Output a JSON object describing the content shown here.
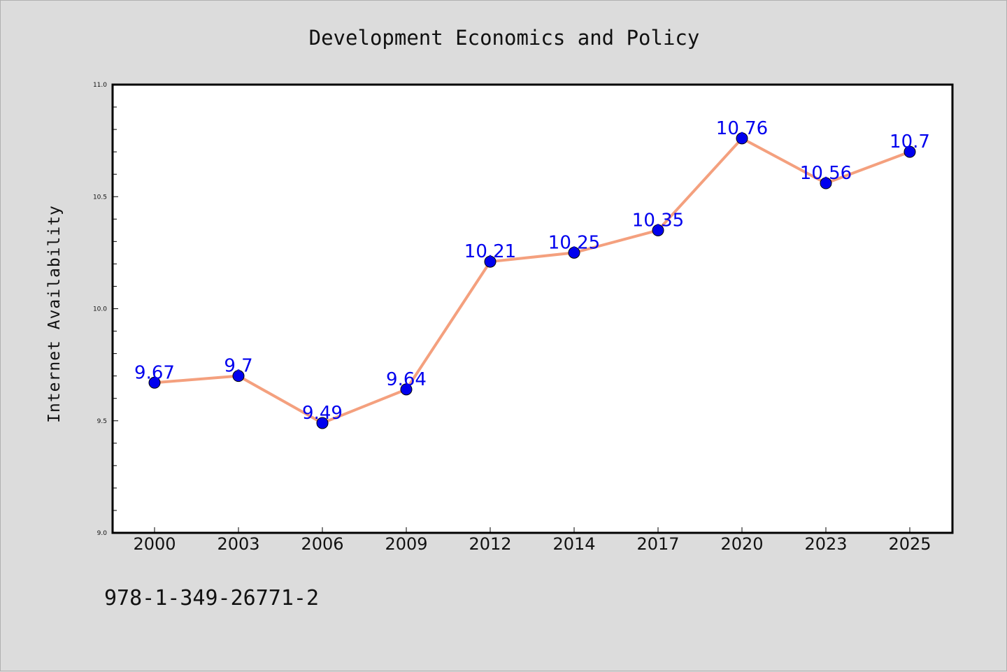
{
  "chart_data": {
    "type": "line",
    "title": "Development Economics and Policy",
    "xlabel": "",
    "ylabel": "Internet Availability",
    "categories": [
      "2000",
      "2003",
      "2006",
      "2009",
      "2012",
      "2014",
      "2017",
      "2020",
      "2023",
      "2025"
    ],
    "values": [
      9.67,
      9.7,
      9.49,
      9.64,
      10.21,
      10.25,
      10.35,
      10.76,
      10.56,
      10.7
    ],
    "data_labels": [
      "9.67",
      "9.7",
      "9.49",
      "9.64",
      "10.21",
      "10.25",
      "10.35",
      "10.76",
      "10.56",
      "10.7"
    ],
    "ylim": [
      9.0,
      11.0
    ],
    "yticks": [
      "9.0",
      "9.5",
      "10.0",
      "10.5",
      "11.0"
    ],
    "grid": false,
    "colors": {
      "line": "#f4a07e",
      "marker": "#0000ee",
      "label": "#0000ee",
      "background": "#dcdcdc",
      "plot_background": "#ffffff"
    }
  },
  "footer": {
    "isbn": "978-1-349-26771-2"
  }
}
